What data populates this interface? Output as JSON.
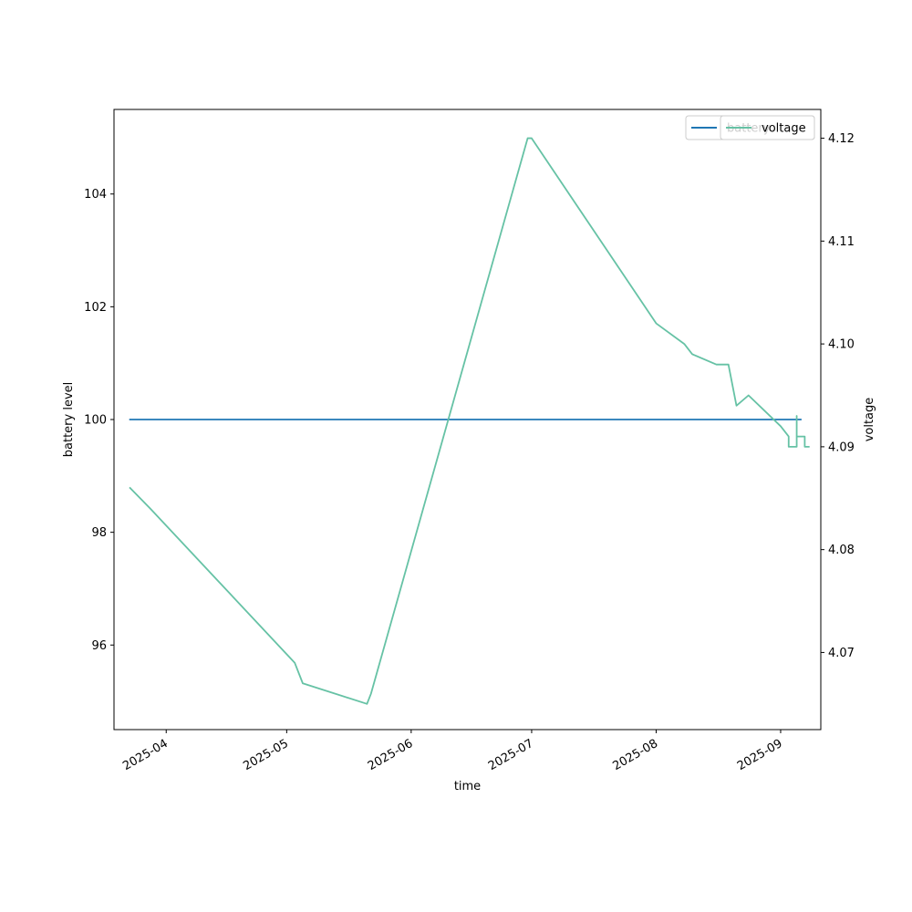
{
  "chart_data": {
    "type": "line",
    "xlabel": "time",
    "x_ticks": [
      "2025-04",
      "2025-05",
      "2025-06",
      "2025-07",
      "2025-08",
      "2025-09"
    ],
    "x_range": [
      "2025-03-19",
      "2025-09-11"
    ],
    "y_left": {
      "label": "battery level",
      "ticks": [
        96,
        98,
        100,
        102,
        104
      ],
      "range": [
        94.5,
        105.5
      ]
    },
    "y_right": {
      "label": "voltage",
      "ticks": [
        4.07,
        4.08,
        4.09,
        4.1,
        4.11,
        4.12
      ],
      "range": [
        4.0625,
        4.1228
      ]
    },
    "series": [
      {
        "name": "battery",
        "axis": "left",
        "color": "#1f77b4",
        "points": [
          {
            "x": "2025-03-23",
            "y": 100
          },
          {
            "x": "2025-09-06",
            "y": 100
          }
        ]
      },
      {
        "name": "voltage",
        "axis": "right",
        "color": "#66c2a5",
        "points": [
          {
            "x": "2025-03-23",
            "y": 4.086
          },
          {
            "x": "2025-03-28",
            "y": 4.084
          },
          {
            "x": "2025-05-03",
            "y": 4.069
          },
          {
            "x": "2025-05-05",
            "y": 4.067
          },
          {
            "x": "2025-05-21",
            "y": 4.065
          },
          {
            "x": "2025-05-22",
            "y": 4.066
          },
          {
            "x": "2025-06-30",
            "y": 4.12
          },
          {
            "x": "2025-07-01",
            "y": 4.12
          },
          {
            "x": "2025-08-01",
            "y": 4.102
          },
          {
            "x": "2025-08-08",
            "y": 4.1
          },
          {
            "x": "2025-08-10",
            "y": 4.099
          },
          {
            "x": "2025-08-16",
            "y": 4.098
          },
          {
            "x": "2025-08-19",
            "y": 4.098
          },
          {
            "x": "2025-08-21",
            "y": 4.094
          },
          {
            "x": "2025-08-24",
            "y": 4.095
          },
          {
            "x": "2025-09-01",
            "y": 4.092
          },
          {
            "x": "2025-09-03",
            "y": 4.091
          },
          {
            "x": "2025-09-03",
            "y": 4.09
          },
          {
            "x": "2025-09-05",
            "y": 4.09
          },
          {
            "x": "2025-09-05",
            "y": 4.093
          },
          {
            "x": "2025-09-05",
            "y": 4.091
          },
          {
            "x": "2025-09-07",
            "y": 4.091
          },
          {
            "x": "2025-09-07",
            "y": 4.09
          },
          {
            "x": "2025-09-08",
            "y": 4.09
          }
        ]
      }
    ],
    "legends": [
      {
        "entries": [
          "battery"
        ],
        "placement": "upper right"
      },
      {
        "entries": [
          "voltage"
        ],
        "placement": "upper right"
      }
    ],
    "grid": false
  }
}
